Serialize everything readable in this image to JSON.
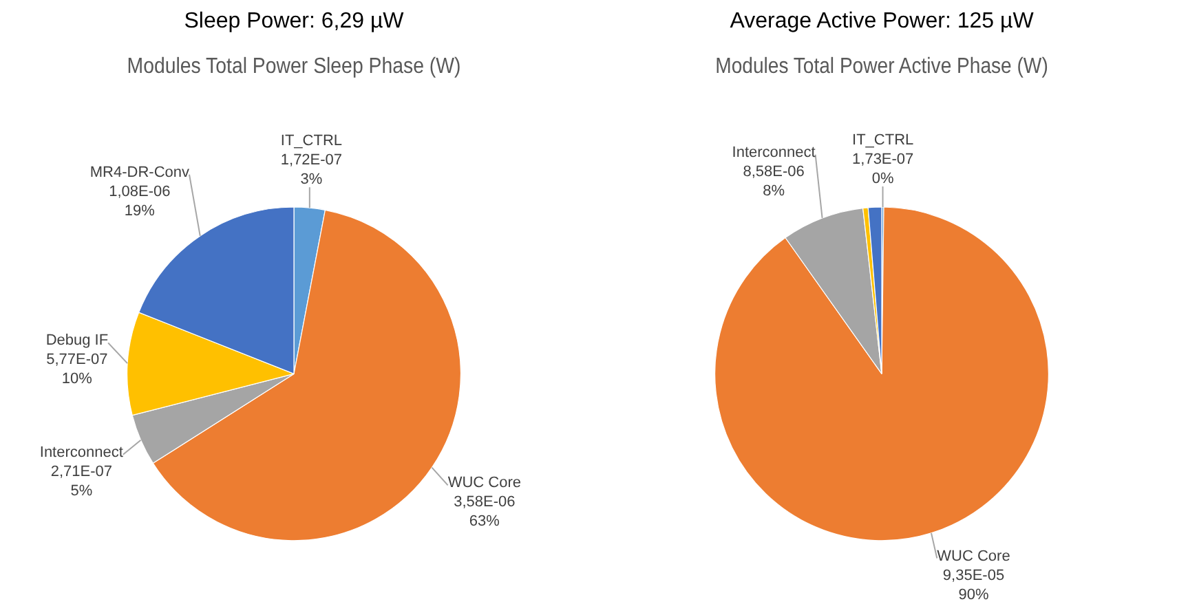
{
  "chart_data": [
    {
      "type": "pie",
      "title": "Sleep Power: 6,29 µW",
      "subtitle": "Modules Total Power Sleep Phase (W)",
      "categories": [
        "IT_CTRL",
        "WUC Core",
        "Interconnect",
        "Debug IF",
        "MR4-DR-Conv"
      ],
      "values": [
        3,
        63,
        5,
        10,
        19
      ],
      "value_labels": [
        "1,72E-07\n3%",
        "3,58E-06\n63%",
        "2,71E-07\n5%",
        "5,77E-07\n10%",
        "1,08E-06\n19%"
      ],
      "colors": [
        "#5b9bd5",
        "#ed7d31",
        "#a5a5a5",
        "#ffc000",
        "#4472c4"
      ],
      "legend": false
    },
    {
      "type": "pie",
      "title": "Average Active Power: 125 µW",
      "subtitle": "Modules Total Power Active Phase (W)",
      "categories": [
        "IT_CTRL",
        "WUC Core",
        "Interconnect",
        null,
        null
      ],
      "values": [
        0.2,
        90,
        8,
        0.5,
        1.3
      ],
      "value_labels": [
        "1,73E-07\n0%",
        "9,35E-05\n90%",
        "8,58E-06\n8%",
        null,
        null
      ],
      "colors": [
        "#5b9bd5",
        "#ed7d31",
        "#a5a5a5",
        "#ffc000",
        "#4472c4"
      ],
      "legend": false
    }
  ]
}
